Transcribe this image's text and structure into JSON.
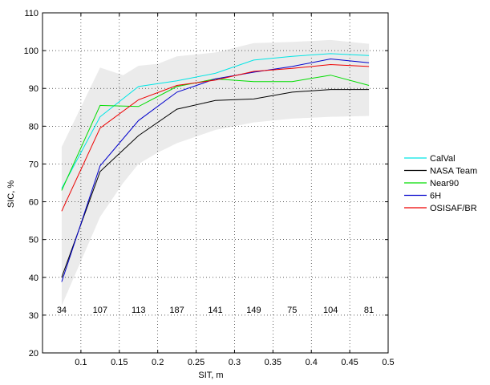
{
  "chart_data": {
    "type": "line",
    "xlabel": "SIT, m",
    "ylabel": "SIC, %",
    "xlim": [
      0.05,
      0.5
    ],
    "ylim": [
      20,
      110
    ],
    "x_ticks": [
      0.1,
      0.15,
      0.2,
      0.25,
      0.3,
      0.35,
      0.4,
      0.45,
      0.5
    ],
    "x_tick_labels": [
      "0.1",
      "0.15",
      "0.2",
      "0.25",
      "0.3",
      "0.35",
      "0.4",
      "0.45",
      "0.5"
    ],
    "y_ticks": [
      20,
      30,
      40,
      50,
      60,
      70,
      80,
      90,
      100,
      110
    ],
    "y_tick_labels": [
      "20",
      "30",
      "40",
      "50",
      "60",
      "70",
      "80",
      "90",
      "100",
      "110"
    ],
    "grid": true,
    "grid_style": "dotted",
    "legend_position": "right",
    "x": [
      0.075,
      0.125,
      0.175,
      0.225,
      0.275,
      0.325,
      0.375,
      0.425,
      0.475
    ],
    "series": [
      {
        "name": "CalVal",
        "color": "#00e5e5",
        "values": [
          63.5,
          82.5,
          90.5,
          92.0,
          94.0,
          97.5,
          98.5,
          99.2,
          98.7
        ]
      },
      {
        "name": "NASA Team",
        "color": "#000000",
        "values": [
          40.0,
          68.0,
          77.5,
          84.5,
          86.8,
          87.2,
          89.0,
          89.7,
          89.7
        ]
      },
      {
        "name": "Near90",
        "color": "#00dd00",
        "values": [
          63.0,
          85.5,
          85.2,
          90.5,
          92.5,
          91.8,
          91.8,
          93.5,
          90.8
        ]
      },
      {
        "name": "6H",
        "color": "#0000cc",
        "values": [
          38.8,
          69.5,
          81.5,
          89.0,
          92.5,
          94.3,
          95.8,
          97.8,
          96.8
        ]
      },
      {
        "name": "OSISAF/BR",
        "color": "#ee0000",
        "values": [
          57.5,
          79.5,
          87.0,
          90.8,
          92.2,
          94.5,
          95.3,
          96.3,
          95.8
        ]
      }
    ],
    "band": {
      "color": "#ebebeb",
      "x": [
        0.075,
        0.125,
        0.155,
        0.175,
        0.2,
        0.225,
        0.275,
        0.325,
        0.375,
        0.425,
        0.475
      ],
      "upper": [
        74.5,
        95.5,
        93.5,
        96.0,
        96.5,
        98.5,
        99.5,
        102.0,
        102.3,
        102.8,
        101.8
      ],
      "lower": [
        32.5,
        56.0,
        65.0,
        70.0,
        73.0,
        75.5,
        79.0,
        81.0,
        82.0,
        82.5,
        82.7
      ]
    },
    "count_annotations": {
      "y": 31.5,
      "labels": [
        "34",
        "107",
        "113",
        "187",
        "141",
        "149",
        "75",
        "104",
        "81"
      ]
    }
  }
}
